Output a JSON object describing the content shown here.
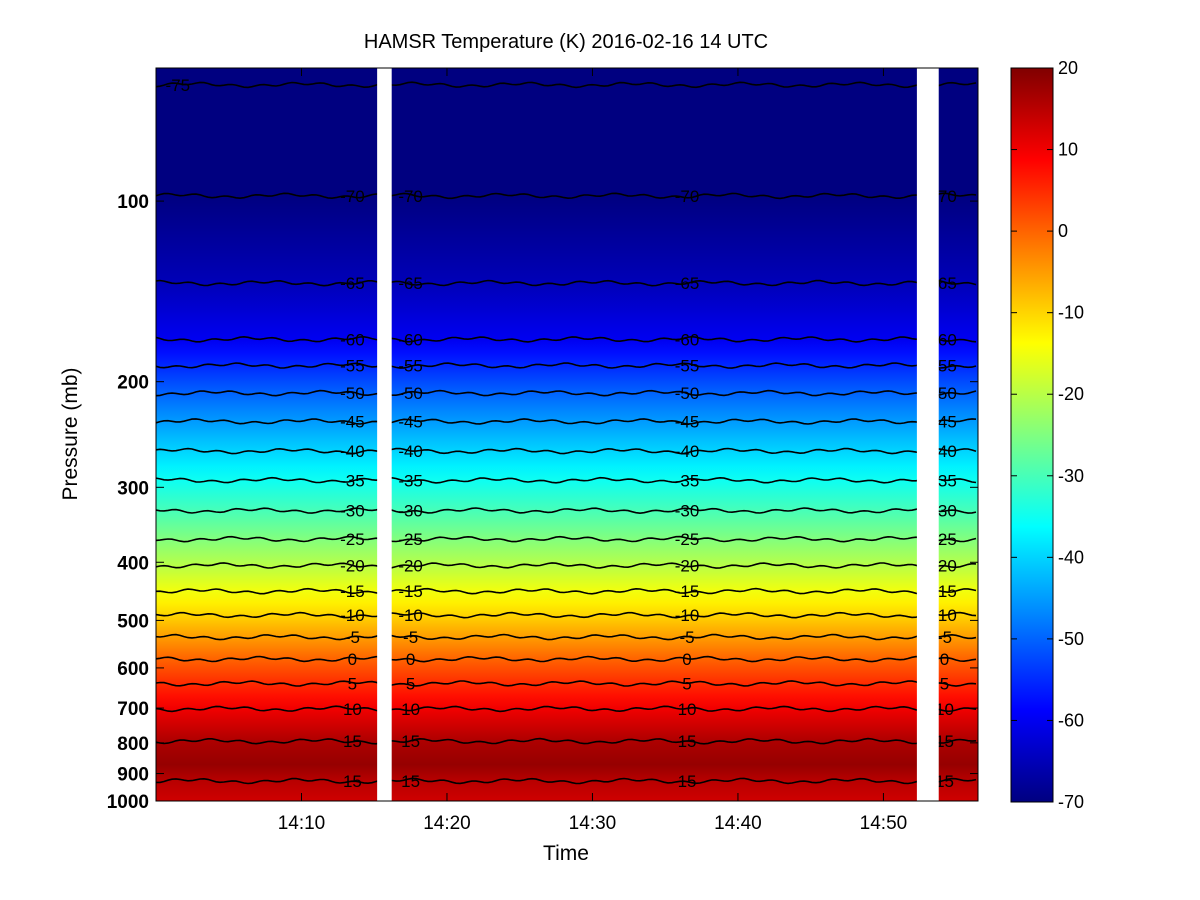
{
  "chart_data": {
    "type": "heatmap",
    "title": "HAMSR  Temperature (K) 2016-02-16 14 UTC",
    "xlabel": "Time",
    "ylabel": "Pressure (mb)",
    "x_tick_labels": [
      "14:10",
      "14:20",
      "14:30",
      "14:40",
      "14:50"
    ],
    "x_tick_values_min": [
      10,
      20,
      30,
      40,
      50
    ],
    "xlim_min": [
      0,
      56.5
    ],
    "y_scale": "log",
    "ylim": [
      1000,
      60
    ],
    "y_tick_labels": [
      "100",
      "200",
      "300",
      "400",
      "500",
      "600",
      "700",
      "800",
      "900",
      "1000"
    ],
    "y_tick_values": [
      100,
      200,
      300,
      400,
      500,
      600,
      700,
      800,
      900,
      1000
    ],
    "colorbar": {
      "min": -70,
      "max": 20,
      "tick_labels": [
        "20",
        "10",
        "0",
        "-10",
        "-20",
        "-30",
        "-40",
        "-50",
        "-60",
        "-70"
      ],
      "tick_values": [
        20,
        10,
        0,
        -10,
        -20,
        -30,
        -40,
        -50,
        -60,
        -70
      ],
      "colormap": "jet"
    },
    "contour_levels": [
      {
        "level": -75,
        "label": "-75",
        "pressure": 64
      },
      {
        "level": -70,
        "label": "-70",
        "pressure": 98
      },
      {
        "level": -65,
        "label": "-65",
        "pressure": 137
      },
      {
        "level": -60,
        "label": "-60",
        "pressure": 170
      },
      {
        "level": -55,
        "label": "-55",
        "pressure": 188
      },
      {
        "level": -50,
        "label": "-50",
        "pressure": 209
      },
      {
        "level": -45,
        "label": "-45",
        "pressure": 233
      },
      {
        "level": -40,
        "label": "-40",
        "pressure": 261
      },
      {
        "level": -35,
        "label": "-35",
        "pressure": 292
      },
      {
        "level": -30,
        "label": "-30",
        "pressure": 328
      },
      {
        "level": -25,
        "label": "-25",
        "pressure": 366
      },
      {
        "level": -20,
        "label": "-20",
        "pressure": 405
      },
      {
        "level": -15,
        "label": "-15",
        "pressure": 447
      },
      {
        "level": -10,
        "label": "-10",
        "pressure": 490
      },
      {
        "level": -5,
        "label": "-5",
        "pressure": 533
      },
      {
        "level": 0,
        "label": "0",
        "pressure": 580
      },
      {
        "level": 5,
        "label": "5",
        "pressure": 637
      },
      {
        "level": 10,
        "label": "10",
        "pressure": 702
      },
      {
        "level": 15,
        "label": "15",
        "pressure": 795
      },
      {
        "level": 15,
        "label": "15",
        "pressure": 926
      }
    ],
    "vertical_profile": [
      {
        "pressure": 60,
        "temperature": -76
      },
      {
        "pressure": 98,
        "temperature": -70
      },
      {
        "pressure": 137,
        "temperature": -65
      },
      {
        "pressure": 170,
        "temperature": -60
      },
      {
        "pressure": 209,
        "temperature": -50
      },
      {
        "pressure": 261,
        "temperature": -40
      },
      {
        "pressure": 328,
        "temperature": -30
      },
      {
        "pressure": 405,
        "temperature": -20
      },
      {
        "pressure": 490,
        "temperature": -10
      },
      {
        "pressure": 580,
        "temperature": 0
      },
      {
        "pressure": 702,
        "temperature": 10
      },
      {
        "pressure": 795,
        "temperature": 16
      },
      {
        "pressure": 870,
        "temperature": 18
      },
      {
        "pressure": 926,
        "temperature": 15
      },
      {
        "pressure": 1000,
        "temperature": 13
      }
    ],
    "data_gaps_min": [
      [
        15.2,
        16.2
      ],
      [
        52.3,
        53.8
      ]
    ]
  }
}
